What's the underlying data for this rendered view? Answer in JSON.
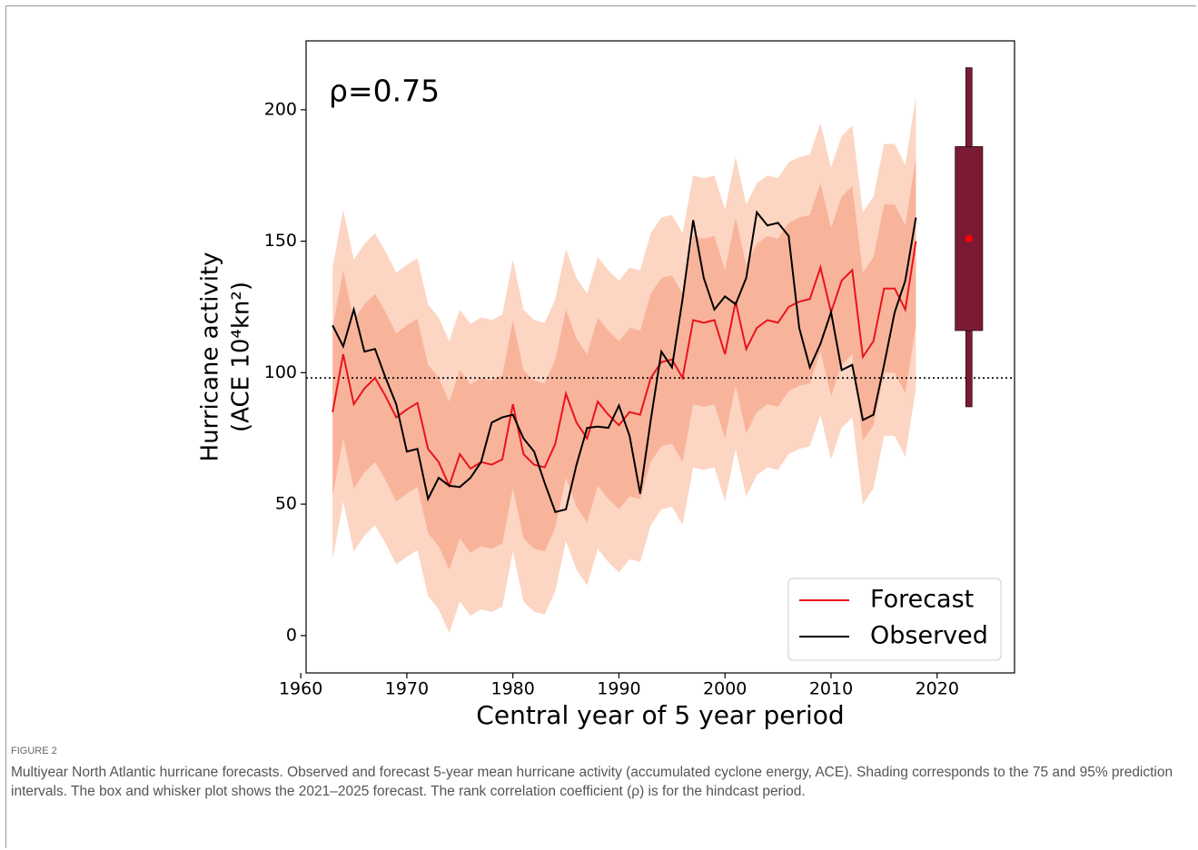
{
  "chart_data": {
    "type": "line",
    "annotation": "ρ=0.75",
    "xlabel": "Central year of 5 year period",
    "ylabel": [
      "Hurricane activity",
      "(ACE 10⁴kn²)"
    ],
    "xlim": [
      1960.5,
      2027.3
    ],
    "ylim": [
      -14.2,
      226.2
    ],
    "xticks": [
      1960,
      1970,
      1980,
      1990,
      2000,
      2010,
      2020
    ],
    "yticks": [
      0,
      50,
      100,
      150,
      200
    ],
    "legend": "lower right",
    "hline": 98,
    "x": [
      1963,
      1964,
      1965,
      1966,
      1967,
      1968,
      1969,
      1970,
      1971,
      1972,
      1973,
      1974,
      1975,
      1976,
      1977,
      1978,
      1979,
      1980,
      1981,
      1982,
      1983,
      1984,
      1985,
      1986,
      1987,
      1988,
      1989,
      1990,
      1991,
      1992,
      1993,
      1994,
      1995,
      1996,
      1997,
      1998,
      1999,
      2000,
      2001,
      2002,
      2003,
      2004,
      2005,
      2006,
      2007,
      2008,
      2009,
      2010,
      2011,
      2012,
      2013,
      2014,
      2015,
      2016,
      2017,
      2018
    ],
    "bands": [
      {
        "color": "#fdd5c3",
        "upper": [
          140,
          162,
          143,
          149,
          153,
          146,
          138,
          141,
          143.5,
          126,
          121,
          112,
          124,
          118.5,
          121,
          120,
          122,
          143,
          124,
          120,
          119,
          128,
          147,
          136,
          130,
          144,
          139,
          135,
          140,
          139,
          153,
          159,
          160,
          153,
          175,
          174,
          175,
          162,
          182,
          164,
          172,
          175,
          174,
          180,
          182,
          183,
          195,
          178,
          190,
          194,
          161,
          167,
          187,
          187,
          179,
          205
        ],
        "lower": [
          29,
          51,
          32,
          38,
          42,
          35,
          27,
          30,
          32.5,
          15,
          10,
          1,
          13,
          7.5,
          10,
          9,
          11,
          32,
          13,
          9,
          8,
          17,
          36,
          25,
          19,
          33,
          28,
          24,
          29,
          28,
          42,
          48,
          49,
          42,
          64,
          63,
          64,
          51,
          71,
          53,
          61,
          64,
          63,
          69,
          71,
          72,
          84,
          67,
          79,
          83,
          50,
          56,
          76,
          76,
          68,
          94
        ]
      },
      {
        "color": "#f8b49b",
        "upper": [
          117,
          139,
          120,
          126,
          130,
          123,
          115,
          118,
          120.5,
          103,
          98,
          89,
          101,
          95.5,
          98,
          97,
          99,
          120,
          101,
          97,
          96,
          105,
          124,
          113,
          107,
          121,
          116,
          112,
          117,
          116,
          130,
          136,
          137,
          130,
          152,
          151,
          152,
          139,
          159,
          141,
          149,
          152,
          151,
          157,
          159,
          160,
          172,
          155,
          167,
          171,
          138,
          144,
          164,
          164,
          156,
          182
        ],
        "lower": [
          53,
          75,
          56,
          62,
          66,
          59,
          51,
          54,
          56.5,
          39,
          34,
          25,
          37,
          31.5,
          34,
          33,
          35,
          56,
          37,
          33,
          32,
          41,
          60,
          49,
          43,
          57,
          52,
          48,
          53,
          52,
          66,
          72,
          73,
          66,
          88,
          87,
          88,
          75,
          95,
          77,
          85,
          88,
          87,
          93,
          95,
          96,
          108,
          91,
          103,
          107,
          74,
          80,
          100,
          100,
          92,
          118
        ]
      }
    ],
    "series": [
      {
        "name": "Forecast",
        "color": "#e8141c",
        "values": [
          85,
          107,
          88,
          94,
          98,
          91,
          83,
          86,
          88.5,
          71,
          66,
          57,
          69,
          63.5,
          66,
          65,
          67,
          88,
          69,
          65,
          64,
          73,
          92,
          81,
          75,
          89,
          84,
          80,
          85,
          84,
          98,
          104,
          105,
          98,
          120,
          119,
          120,
          107,
          127,
          109,
          117,
          120,
          119,
          125,
          127,
          128,
          140,
          123,
          135,
          139,
          106,
          112,
          132,
          132,
          124,
          150
        ]
      },
      {
        "name": "Observed",
        "color": "#000000",
        "values": [
          118,
          110,
          124,
          108,
          109,
          98,
          88,
          70,
          71,
          52,
          60,
          57,
          56.5,
          60,
          66,
          81,
          83,
          84,
          75,
          70,
          58,
          47,
          48,
          65,
          79,
          79.5,
          79,
          87.5,
          76,
          54,
          82,
          108,
          102,
          128,
          158,
          136,
          124,
          129,
          126,
          136,
          161,
          156,
          157,
          152,
          117,
          102,
          111,
          123,
          101,
          103,
          82,
          84,
          103,
          123,
          135,
          159
        ]
      }
    ],
    "box": {
      "x": 2023,
      "width": 2.6,
      "whisker_low": 87,
      "q1": 116,
      "median": 151,
      "q3": 186,
      "whisker_high": 216,
      "color": "#7b1b33",
      "median_color": "#ff0000"
    }
  },
  "caption": {
    "label": "FIGURE 2",
    "text": "Multiyear North Atlantic hurricane forecasts. Observed and forecast 5-year mean hurricane activity (accumulated cyclone energy, ACE). Shading corresponds to the 75 and 95% prediction intervals. The box and whisker plot shows the 2021–2025 forecast. The rank correlation coefficient (ρ) is for the hindcast period."
  }
}
